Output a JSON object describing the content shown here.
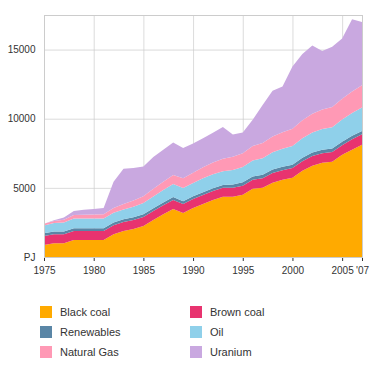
{
  "chart_data": {
    "type": "area",
    "stacked": true,
    "grid": true,
    "x": [
      1975,
      1976,
      1977,
      1978,
      1979,
      1980,
      1981,
      1982,
      1983,
      1984,
      1985,
      1986,
      1987,
      1988,
      1989,
      1990,
      1991,
      1992,
      1993,
      1994,
      1995,
      1996,
      1997,
      1998,
      1999,
      2000,
      2001,
      2002,
      2003,
      2004,
      2005,
      2006,
      2007
    ],
    "xlim": [
      1975,
      2007
    ],
    "xticks": [
      1975,
      1980,
      1985,
      1990,
      1995,
      2000,
      2005,
      {
        "value": 2007,
        "label": "'07"
      }
    ],
    "ylim": [
      0,
      17500
    ],
    "yticks": [
      {
        "value": 0,
        "label": "PJ"
      },
      5000,
      10000,
      15000
    ],
    "series": [
      {
        "name": "Black coal",
        "color": "#ffaa00",
        "values": [
          870,
          1000,
          1000,
          1230,
          1230,
          1230,
          1230,
          1650,
          1880,
          2030,
          2250,
          2680,
          3100,
          3480,
          3190,
          3550,
          3840,
          4130,
          4350,
          4350,
          4500,
          4930,
          5000,
          5370,
          5580,
          5730,
          6230,
          6600,
          6810,
          6890,
          7390,
          7760,
          8120
        ]
      },
      {
        "name": "Brown coal",
        "color": "#e8336f",
        "values": [
          650,
          650,
          650,
          650,
          650,
          650,
          650,
          650,
          650,
          650,
          650,
          650,
          650,
          650,
          650,
          650,
          650,
          650,
          650,
          650,
          650,
          650,
          700,
          700,
          700,
          700,
          700,
          700,
          700,
          700,
          700,
          750,
          750
        ]
      },
      {
        "name": "Renewables",
        "color": "#5a86a6",
        "values": [
          200,
          200,
          200,
          200,
          200,
          200,
          200,
          200,
          200,
          200,
          200,
          200,
          200,
          200,
          200,
          200,
          200,
          200,
          200,
          250,
          250,
          250,
          250,
          250,
          250,
          250,
          250,
          250,
          250,
          250,
          250,
          250,
          250
        ]
      },
      {
        "name": "Oil",
        "color": "#8fd0ea",
        "values": [
          550,
          600,
          650,
          700,
          700,
          700,
          700,
          700,
          700,
          750,
          800,
          850,
          900,
          950,
          950,
          950,
          1000,
          1000,
          1000,
          1050,
          1100,
          1150,
          1200,
          1250,
          1300,
          1350,
          1400,
          1450,
          1500,
          1550,
          1600,
          1650,
          1700
        ]
      },
      {
        "name": "Natural Gas",
        "color": "#ff99b5",
        "values": [
          130,
          150,
          200,
          250,
          280,
          300,
          320,
          350,
          400,
          450,
          500,
          550,
          600,
          650,
          700,
          750,
          800,
          850,
          900,
          950,
          1000,
          1050,
          1100,
          1150,
          1200,
          1250,
          1300,
          1350,
          1400,
          1450,
          1500,
          1550,
          1600
        ]
      },
      {
        "name": "Uranium",
        "color": "#c9a8e0",
        "values": [
          0,
          50,
          150,
          300,
          350,
          400,
          450,
          1900,
          2550,
          2350,
          2150,
          2300,
          2300,
          2350,
          2200,
          2100,
          2100,
          2150,
          2300,
          1600,
          1500,
          1900,
          2750,
          3300,
          3300,
          4500,
          4800,
          4950,
          4240,
          4360,
          4360,
          5240,
          4580
        ]
      }
    ]
  }
}
